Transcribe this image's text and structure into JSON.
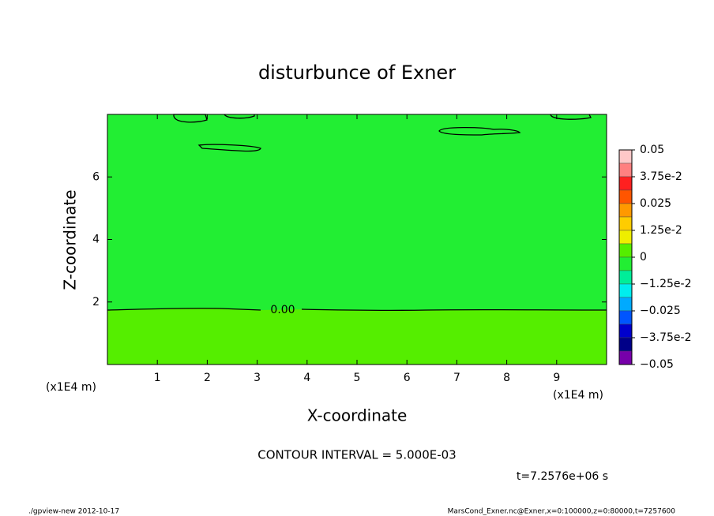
{
  "chart_data": {
    "type": "contour",
    "title": "disturbunce of Exner",
    "xlabel": "X-coordinate",
    "ylabel": "Z-coordinate",
    "xunit": "(x1E4 m)",
    "yunit": "(x1E4 m)",
    "xlim": [
      0,
      10
    ],
    "ylim": [
      0,
      8
    ],
    "xticks": [
      1,
      2,
      3,
      4,
      5,
      6,
      7,
      8,
      9
    ],
    "yticks": [
      2,
      4,
      6
    ],
    "contour_label": "0.00",
    "contour_interval": "CONTOUR INTERVAL = 5.000E-03",
    "time": "t=7.2576e+06 s",
    "colorbar": {
      "lim": [
        -0.05,
        0.05
      ],
      "ticks": [
        0.05,
        {
          "value": 0.0375,
          "label": "3.75e-2"
        },
        0.025,
        {
          "value": 0.0125,
          "label": "1.25e-2"
        },
        0,
        {
          "value": -0.0125,
          "label": "−1.25e-2"
        },
        {
          "value": -0.025,
          "label": "−0.025"
        },
        {
          "value": -0.0375,
          "label": "−3.75e-2"
        },
        {
          "value": -0.05,
          "label": "−0.05"
        }
      ],
      "colors": [
        "#ffc8c8",
        "#ff8080",
        "#ff2020",
        "#ff5500",
        "#ff9900",
        "#ffcc00",
        "#eeee00",
        "#55ee00",
        "#22ee33",
        "#00ee99",
        "#00eeee",
        "#00aaff",
        "#0055ff",
        "#0000cc",
        "#000088",
        "#7700aa"
      ]
    },
    "footer_left": "./gpview-new  2012-10-17",
    "footer_right": "MarsCond_Exner.nc@Exner,x=0:100000,z=0:80000,t=7257600"
  }
}
